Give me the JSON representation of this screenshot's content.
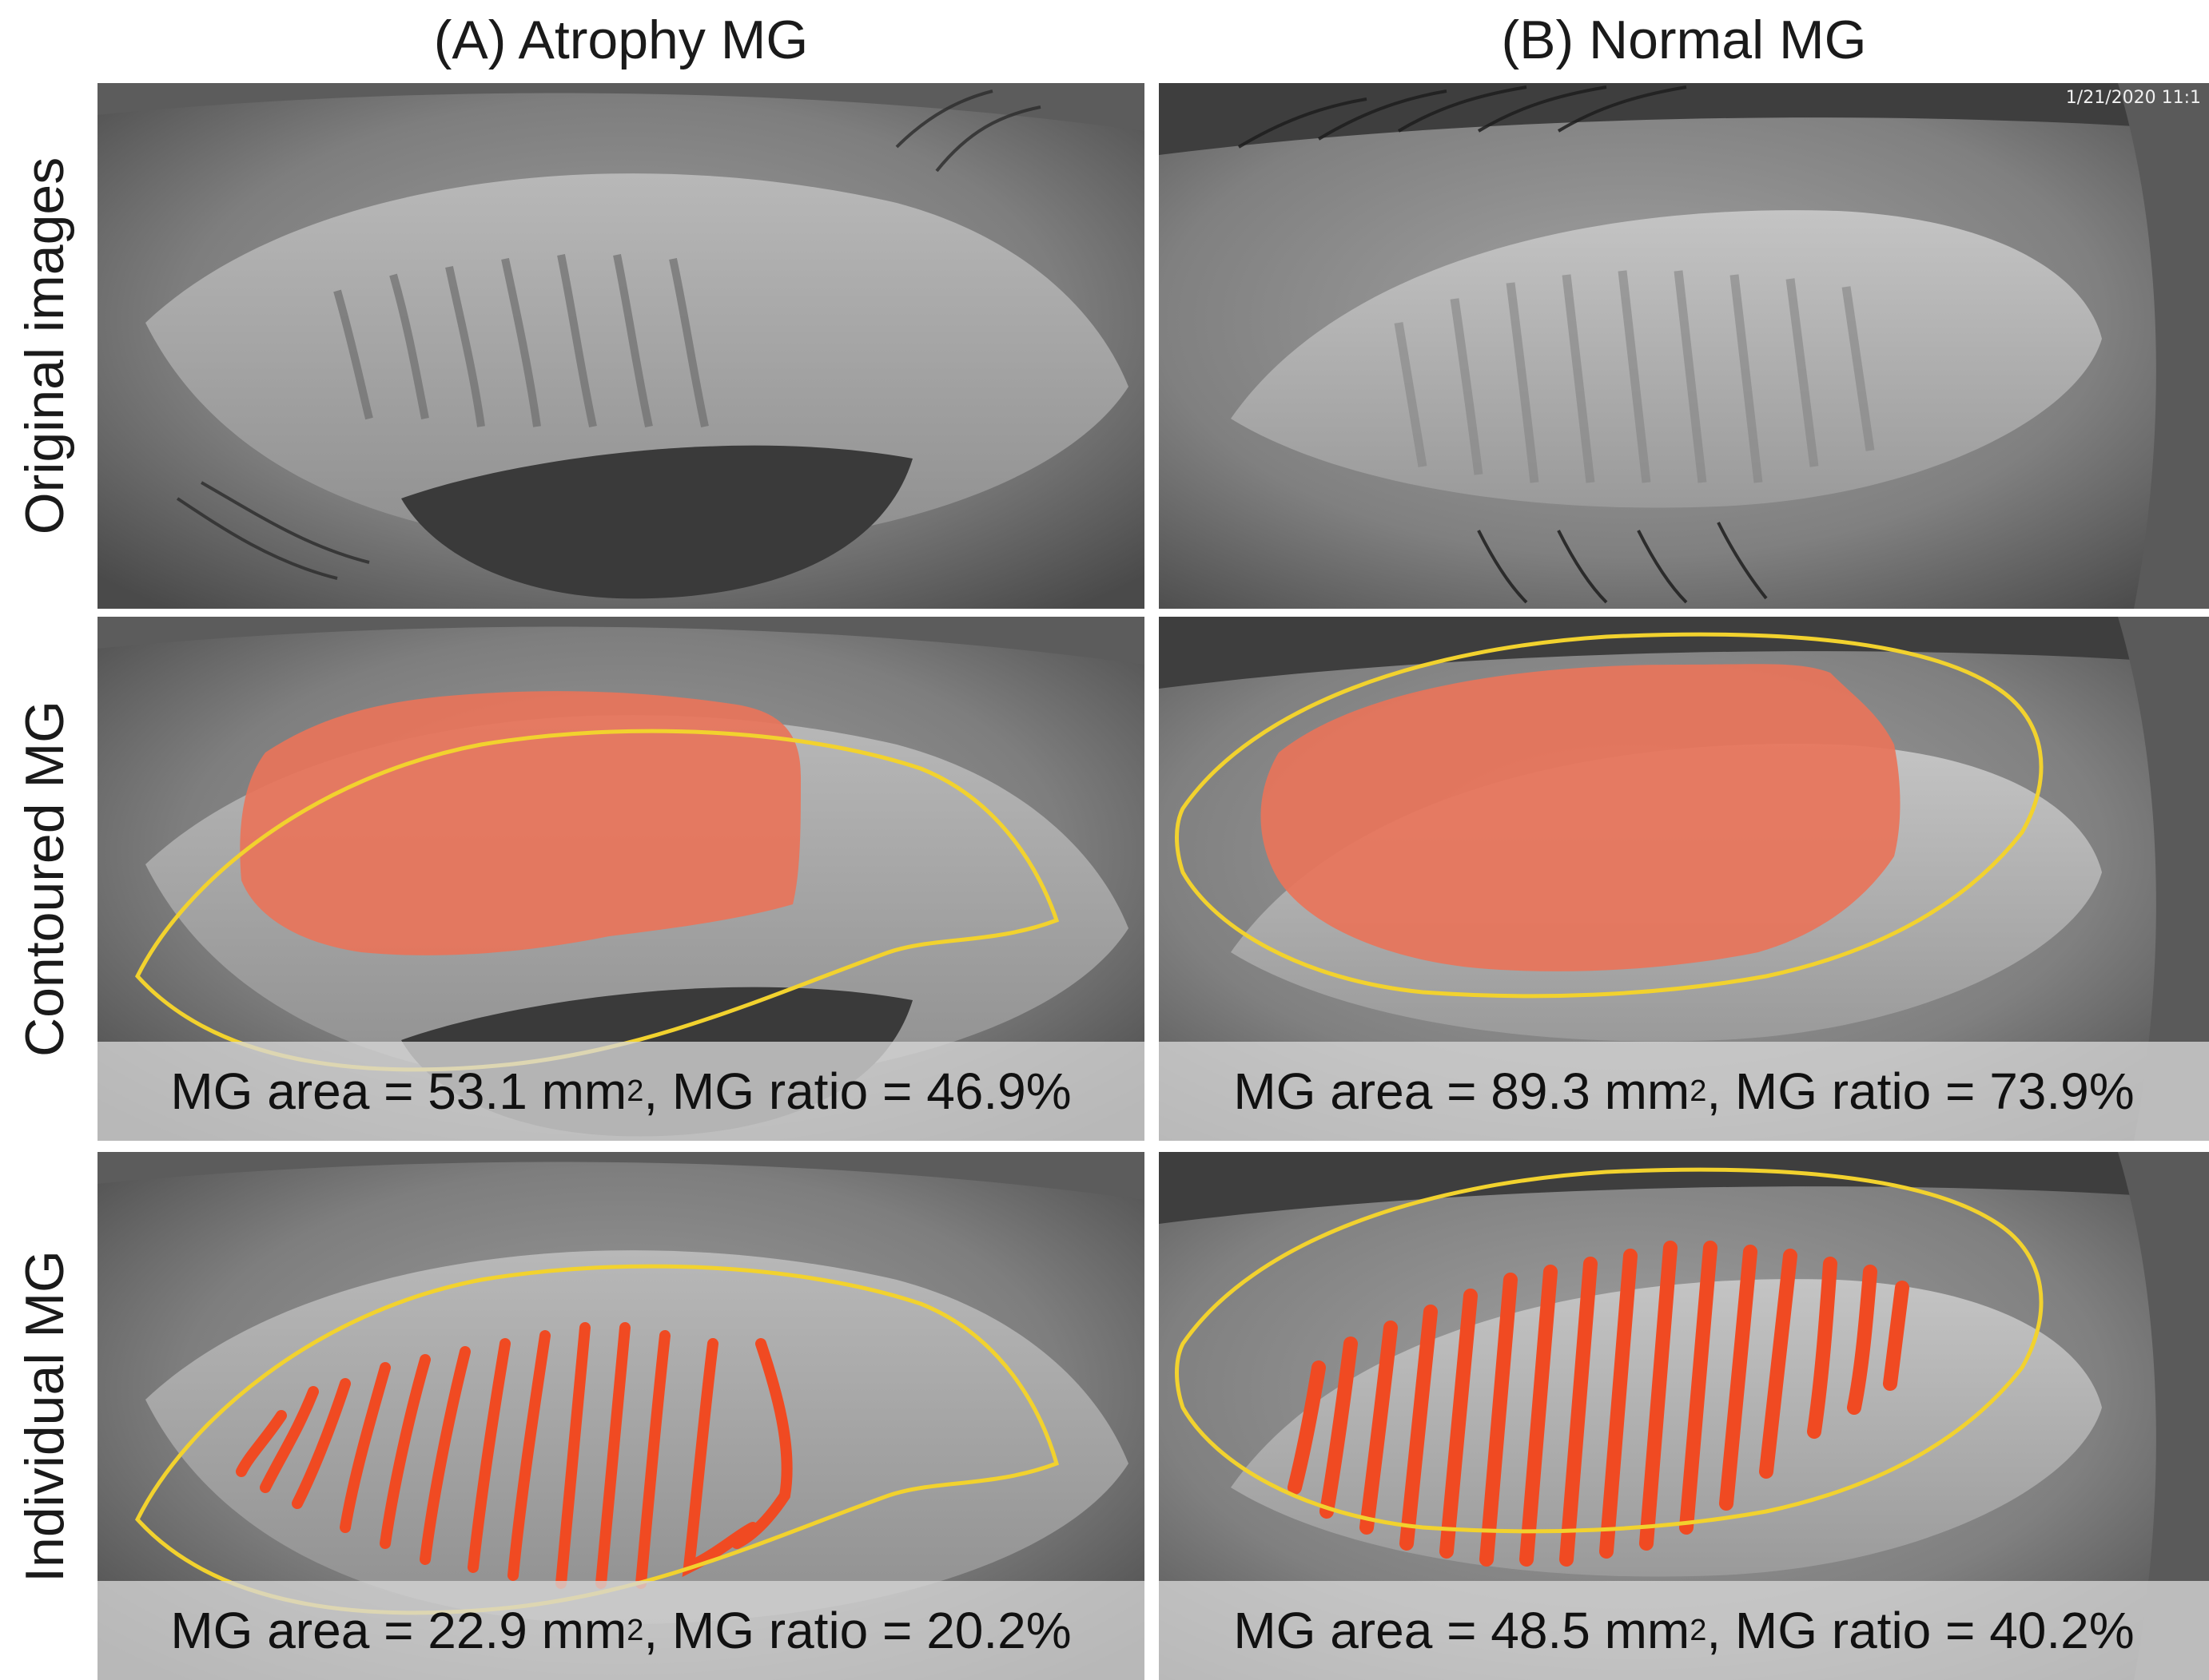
{
  "columns": [
    {
      "title": "(A) Atrophy MG"
    },
    {
      "title": "(B) Normal MG"
    }
  ],
  "rows": [
    {
      "title": "Original images"
    },
    {
      "title": "Contoured MG"
    },
    {
      "title": "Individual MG"
    }
  ],
  "timestamp": "1/21/2020 11:1",
  "captions": {
    "a_contoured": {
      "pre": "MG area = 53.1 mm",
      "sup": "2",
      "post": ", MG ratio = 46.9%"
    },
    "b_contoured": {
      "pre": "MG area = 89.3 mm",
      "sup": "2",
      "post": ", MG ratio = 73.9%"
    },
    "a_individual": {
      "pre": "MG area = 22.9 mm",
      "sup": "2",
      "post": ", MG ratio = 20.2%"
    },
    "b_individual": {
      "pre": "MG area = 48.5 mm",
      "sup": "2",
      "post": ", MG ratio = 40.2%"
    }
  },
  "colors": {
    "contour": "#f2d22e",
    "mg_region": "#e8745a",
    "mg_gland": "#f04a22",
    "background": "#ffffff"
  }
}
